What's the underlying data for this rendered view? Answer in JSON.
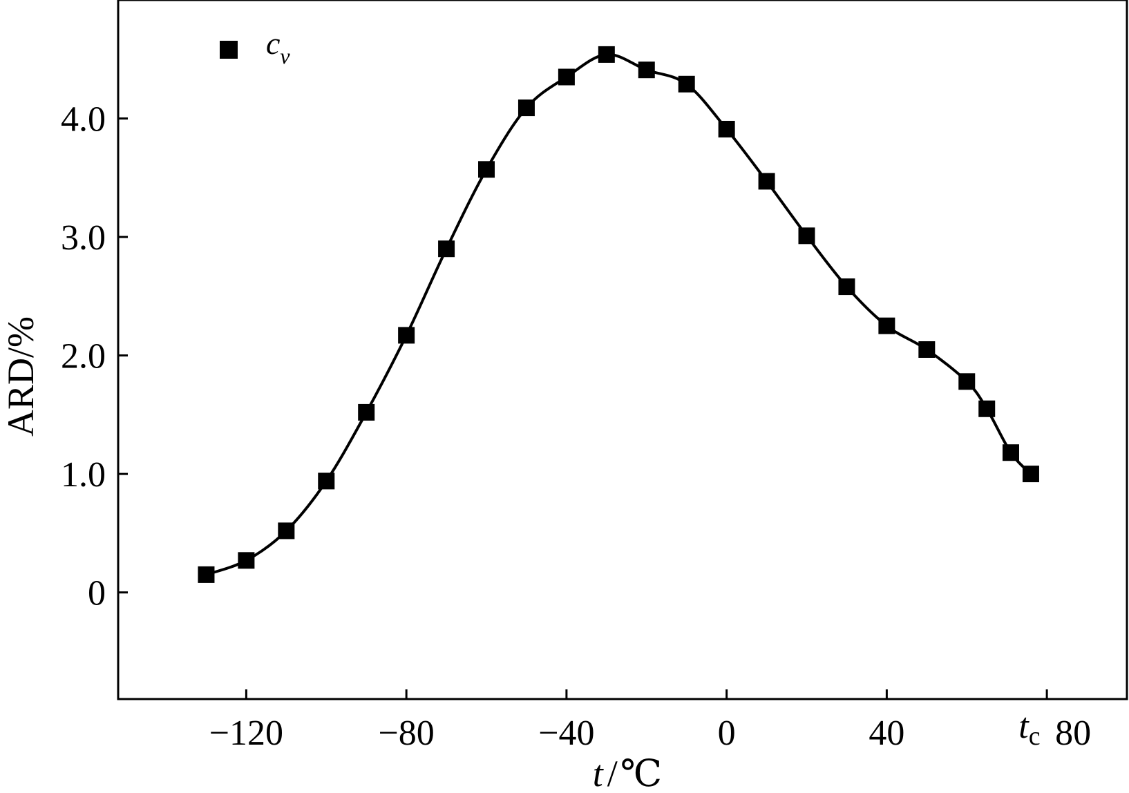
{
  "chart_data": {
    "type": "line",
    "xlabel": {
      "symbol": "t",
      "sep": "/",
      "unit": "℃"
    },
    "ylabel": "ARD/%",
    "xlim": [
      -152,
      100
    ],
    "ylim": [
      -0.9,
      5.0
    ],
    "xticks": [
      {
        "value": -120,
        "label": "−120"
      },
      {
        "value": -80,
        "label": "−80"
      },
      {
        "value": -40,
        "label": "−40"
      },
      {
        "value": 0,
        "label": "0"
      },
      {
        "value": 40,
        "label": "40"
      },
      {
        "value": 80,
        "label": "80"
      }
    ],
    "yticks": [
      {
        "value": 0,
        "label": "0"
      },
      {
        "value": 1.0,
        "label": "1.0"
      },
      {
        "value": 2.0,
        "label": "2.0"
      },
      {
        "value": 3.0,
        "label": "3.0"
      },
      {
        "value": 4.0,
        "label": "4.0"
      }
    ],
    "annotation": {
      "symbol": "t",
      "subscript": "c",
      "x": 76
    },
    "legend": {
      "position": "top-left",
      "symbol": "c",
      "subscript": "v"
    },
    "grid": false,
    "colors": {
      "series": "#000000",
      "axes": "#000000"
    },
    "series": [
      {
        "marker": "square",
        "x": [
          -130,
          -120,
          -110,
          -100,
          -90,
          -80,
          -70,
          -60,
          -50,
          -40,
          -30,
          -20,
          -10,
          0,
          10,
          20,
          30,
          40,
          50,
          60,
          65,
          71,
          76
        ],
        "y": [
          0.15,
          0.27,
          0.52,
          0.94,
          1.52,
          2.17,
          2.9,
          3.57,
          4.09,
          4.35,
          4.54,
          4.41,
          4.29,
          3.91,
          3.47,
          3.01,
          2.58,
          2.25,
          2.05,
          1.78,
          1.55,
          1.18,
          1.0
        ]
      }
    ]
  }
}
